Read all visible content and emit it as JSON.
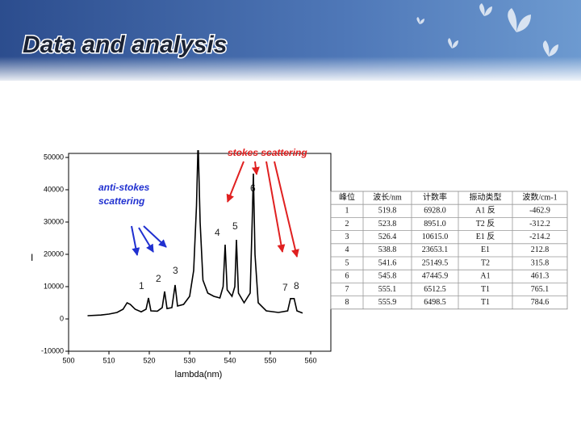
{
  "header": {
    "title": "Data and analysis"
  },
  "chart": {
    "type": "line",
    "x": [
      504.7,
      508,
      510,
      512,
      513.5,
      514.5,
      515.3,
      516.5,
      518,
      519.2,
      519.8,
      520.4,
      522,
      523.2,
      523.8,
      524.4,
      525.6,
      526.4,
      527,
      528.5,
      530,
      531,
      531.7,
      532.1,
      532.6,
      533.3,
      534.5,
      536,
      537.5,
      538.3,
      538.8,
      539.3,
      540.5,
      541.2,
      541.6,
      542.1,
      543.5,
      545,
      545.5,
      545.8,
      546.2,
      547,
      549,
      552,
      554.3,
      555,
      555.9,
      556.6,
      558
    ],
    "values": [
      1000,
      1200,
      1500,
      2000,
      3000,
      5000,
      4500,
      3000,
      2200,
      3000,
      6500,
      2500,
      2400,
      3500,
      8500,
      3200,
      3500,
      10500,
      4000,
      4500,
      7000,
      15000,
      35000,
      55000,
      30000,
      12000,
      8000,
      7000,
      6500,
      10000,
      23000,
      9000,
      7000,
      10000,
      24500,
      8000,
      5000,
      8000,
      30000,
      45000,
      20000,
      5000,
      2500,
      2000,
      2500,
      6300,
      6300,
      2500,
      1800
    ],
    "color": "#000000",
    "xlim": [
      500,
      565
    ],
    "ylim": [
      -10000,
      50000
    ],
    "xticks": [
      500,
      510,
      520,
      530,
      540,
      550,
      560
    ],
    "yticks": [
      -10000,
      0,
      10000,
      20000,
      30000,
      40000,
      50000
    ],
    "x_label": "lambda(nm)",
    "y_label": "I",
    "annotations": {
      "stokes": "stokes scattering",
      "anti_stokes_1": "anti-stokes",
      "anti_stokes_2": "scattering",
      "peaks": [
        "1",
        "2",
        "3",
        "4",
        "5",
        "6",
        "7",
        "8"
      ]
    }
  },
  "table": {
    "header": [
      "峰位",
      "波长/nm",
      "计数率",
      "振动类型",
      "波数/cm-1"
    ],
    "rows": [
      [
        "1",
        "519.8",
        "6928.0",
        "A1 反",
        "-462.9"
      ],
      [
        "2",
        "523.8",
        "8951.0",
        "T2 反",
        "-312.2"
      ],
      [
        "3",
        "526.4",
        "10615.0",
        "E1 反",
        "-214.2"
      ],
      [
        "4",
        "538.8",
        "23653.1",
        "E1",
        "212.8"
      ],
      [
        "5",
        "541.6",
        "25149.5",
        "T2",
        "315.8"
      ],
      [
        "6",
        "545.8",
        "47445.9",
        "A1",
        "461.3"
      ],
      [
        "7",
        "555.1",
        "6512.5",
        "T1",
        "765.1"
      ],
      [
        "8",
        "555.9",
        "6498.5",
        "T1",
        "784.6"
      ]
    ]
  }
}
